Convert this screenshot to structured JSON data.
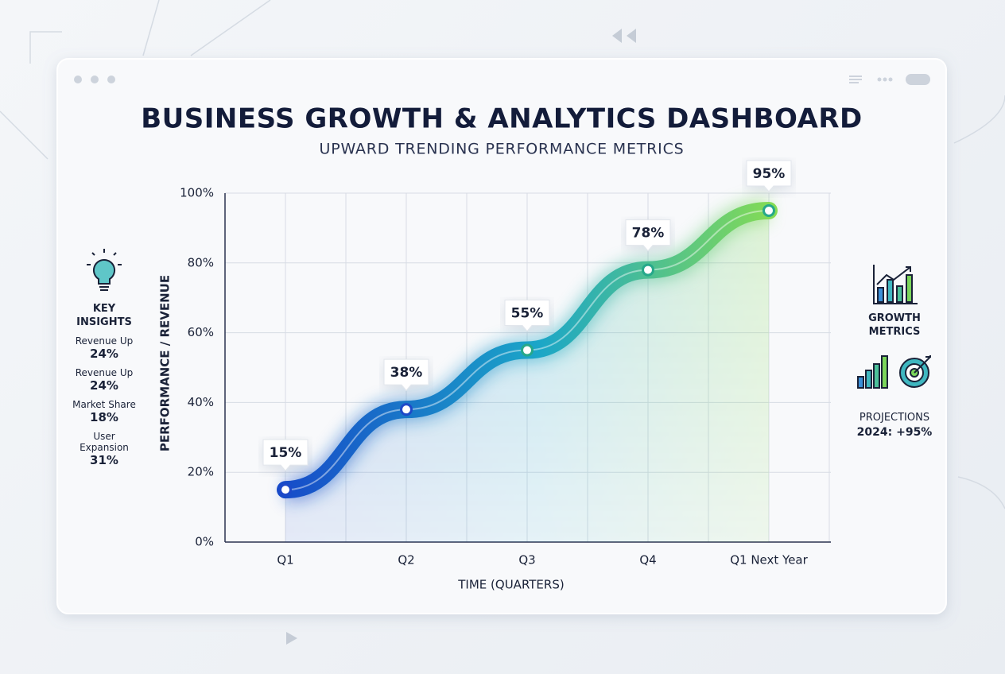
{
  "chart_data": {
    "type": "line",
    "title": "BUSINESS GROWTH & ANALYTICS DASHBOARD",
    "subtitle": "UPWARD TRENDING PERFORMANCE METRICS",
    "x_label": "TIME (QUARTERS)",
    "y_label": "PERFORMANCE / REVENUE",
    "categories": [
      "Q1",
      "Q2",
      "Q3",
      "Q4",
      "Q1 Next Year"
    ],
    "values": [
      15,
      38,
      55,
      78,
      95
    ],
    "value_labels": [
      "15%",
      "38%",
      "55%",
      "78%",
      "95%"
    ],
    "colors": [
      "#1637c9",
      "#8ee04a"
    ],
    "ylim": [
      0,
      100
    ],
    "yticks": [
      {
        "value": 0,
        "label": "0%"
      },
      {
        "value": 20,
        "label": "20%"
      },
      {
        "value": 40,
        "label": "40%"
      },
      {
        "value": 60,
        "label": "60%"
      },
      {
        "value": 80,
        "label": "80%"
      },
      {
        "value": 100,
        "label": "100%"
      }
    ],
    "grid": true
  },
  "insights": {
    "title": "KEY INSIGHTS",
    "items": [
      {
        "label": "Revenue Up",
        "value": "24%"
      },
      {
        "label": "Revenue Up",
        "value": "24%"
      },
      {
        "label": "Market Share",
        "value": "18%"
      },
      {
        "label": "User Expansion",
        "value": "31%"
      }
    ]
  },
  "growth": {
    "title": "GROWTH METRICS",
    "projection_label": "PROJECTIONS",
    "projection_value": "2024: +95%"
  }
}
